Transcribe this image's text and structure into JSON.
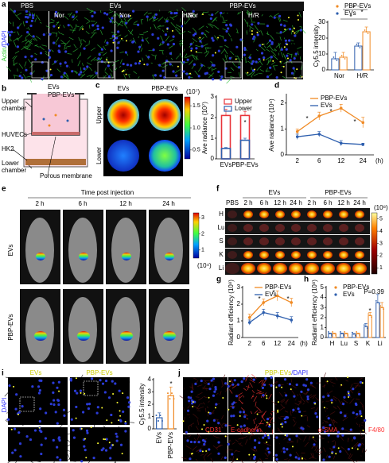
{
  "figure": {
    "panels": [
      "a",
      "b",
      "c",
      "d",
      "e",
      "f",
      "g",
      "h",
      "i",
      "j"
    ],
    "a": {
      "stain": [
        "Actin",
        "/DAPI"
      ],
      "groups": [
        "PBS",
        "EVs",
        "PBP-EVs"
      ],
      "conditions": [
        "Nor",
        "Nor",
        "H/R",
        "Nor",
        "H/R"
      ]
    },
    "b": {
      "evs": "EVs",
      "pbp_evs": "PBP-EVs",
      "upper_chamber": [
        "Upper",
        "chamber"
      ],
      "huvecs": "HUVECs",
      "hk2": "HK2",
      "lower_chamber": [
        "Lower",
        "chamber"
      ],
      "membrane": "Porous membrane"
    },
    "c": {
      "columns": [
        "EVs",
        "PBP-EVs"
      ],
      "rows": [
        "Upper",
        "Lower"
      ],
      "colorbar_unit": "(10⁷)",
      "clim": [
        0.3,
        1.7
      ],
      "colorbar_ticks": [
        0.5,
        {
          "value": 1,
          "label": "1.0"
        },
        1.5
      ]
    },
    "e": {
      "title": "Time post injection",
      "times": [
        "2 h",
        "6 h",
        "12 h",
        "24 h"
      ],
      "rows": [
        "EVs",
        "PBP-EVs"
      ],
      "colorbar_unit": "(10⁴)",
      "clim": [
        0.5,
        3.3
      ],
      "colorbar_ticks": [
        1,
        2,
        3
      ]
    },
    "f": {
      "groups": [
        "EVs",
        "PBP-EVs"
      ],
      "control": "PBS",
      "times": [
        "2 h",
        "6 h",
        "12 h",
        "24 h"
      ],
      "organs": [
        "H",
        "Lu",
        "S",
        "K",
        "Li"
      ],
      "colorbar_unit": "(10⁸)",
      "clim": [
        0.5,
        5.5
      ],
      "colorbar_ticks": [
        1,
        2,
        3,
        4,
        5
      ]
    },
    "i": {
      "columns": [
        "EVs",
        "PBP-EVs"
      ],
      "stain": "DAPI"
    },
    "j": {
      "title": [
        "PBP-EVs",
        "/DAPI"
      ],
      "markers": [
        "CD31",
        "E-cadherin",
        "α-SMA",
        "F4/80"
      ]
    }
  },
  "chart_data": [
    {
      "type": "bar",
      "y_label": "Cy5.5 intensity",
      "categories": [
        "Nor",
        "H/R"
      ],
      "series": [
        {
          "name": "PBP-EVs",
          "color": "#f08a24",
          "values": [
            8,
            24
          ],
          "errors": [
            3,
            3
          ]
        },
        {
          "name": "EVs",
          "color": "#2e5fae",
          "values": [
            7,
            15
          ],
          "errors": [
            4,
            2
          ]
        }
      ],
      "ylim": [
        0,
        30
      ],
      "yticks": [
        0,
        10,
        20,
        30
      ],
      "annotations": [
        "*",
        "*",
        "*"
      ]
    },
    {
      "type": "bar",
      "barmode": "overlay",
      "y_label": "Ave radiance (10⁷)",
      "categories": [
        "EVs",
        "PBP-EVs"
      ],
      "series": [
        {
          "name": "Upper",
          "color": "#e8343a",
          "values": [
            2.1,
            2.1
          ],
          "errors": [
            0.3,
            0.2
          ]
        },
        {
          "name": "Lower",
          "color": "#2e5fae",
          "values": [
            0.5,
            0.9
          ],
          "errors": [
            0.05,
            0.1
          ]
        }
      ],
      "ylim": [
        0,
        3
      ],
      "yticks": [
        0,
        1,
        2,
        3
      ],
      "annotations": [
        "*"
      ]
    },
    {
      "type": "line",
      "y_label": "Ave radiance (10⁴)",
      "x_unit": "(h)",
      "categories": [
        "2",
        "6",
        "12",
        "24"
      ],
      "series": [
        {
          "name": "PBP-EVs",
          "color": "#f08a24",
          "values": [
            0.9,
            1.5,
            1.8,
            1.25
          ],
          "errors": [
            0.1,
            0.15,
            0.15,
            0.2
          ]
        },
        {
          "name": "EVs",
          "color": "#2e5fae",
          "values": [
            0.7,
            0.8,
            0.45,
            0.4
          ],
          "errors": [
            0.1,
            0.1,
            0.1,
            0.05
          ]
        }
      ],
      "ylim": [
        0,
        2.3
      ],
      "yticks": [
        0,
        1,
        2
      ],
      "annotations": [
        "*",
        "*",
        "*"
      ]
    },
    {
      "type": "line",
      "y_label": "Radiant efficiency (10⁸)",
      "x_unit": "(h)",
      "categories": [
        "2",
        "6",
        "12",
        "24"
      ],
      "series": [
        {
          "name": "PBP-EVs",
          "color": "#f08a24",
          "values": [
            1.2,
            2.1,
            2.5,
            2.1
          ],
          "errors": [
            0.2,
            0.2,
            0.3,
            0.25
          ]
        },
        {
          "name": "EVs",
          "color": "#2e5fae",
          "values": [
            0.9,
            1.5,
            1.3,
            1.05
          ],
          "errors": [
            0.15,
            0.2,
            0.2,
            0.2
          ]
        }
      ],
      "ylim": [
        0,
        3
      ],
      "yticks": [
        0,
        1,
        2,
        3
      ],
      "annotations": [
        "*",
        "*",
        "*"
      ]
    },
    {
      "type": "bar",
      "y_label": "Radiant efficiency (10⁸)",
      "categories": [
        "H",
        "Lu",
        "S",
        "K",
        "Li"
      ],
      "series": [
        {
          "name": "PBP-EVs",
          "color": "#f08a24",
          "values": [
            0.4,
            0.4,
            0.4,
            2.2,
            3.0
          ],
          "errors": [
            0.05,
            0.05,
            0.05,
            0.3,
            0.5
          ]
        },
        {
          "name": "EVs",
          "color": "#2e5fae",
          "values": [
            0.4,
            0.4,
            0.35,
            1.1,
            3.5
          ],
          "errors": [
            0.05,
            0.05,
            0.05,
            0.3,
            0.8
          ]
        }
      ],
      "ylim": [
        0,
        5
      ],
      "yticks": [
        0,
        1,
        2,
        3,
        4,
        5
      ],
      "annotations": [
        "*",
        "P=0.39"
      ]
    },
    {
      "type": "bar",
      "y_label": "Cy5.5 intensity",
      "categories": [
        "EVs",
        "PBP-EVs"
      ],
      "values": [
        0.9,
        2.7
      ],
      "errors": [
        0.4,
        0.7
      ],
      "colors": [
        "#2e5fae",
        "#f08a24"
      ],
      "ylim": [
        0,
        4
      ],
      "yticks": [
        0,
        1,
        2,
        3,
        4
      ],
      "annotations": [
        "*"
      ]
    }
  ]
}
